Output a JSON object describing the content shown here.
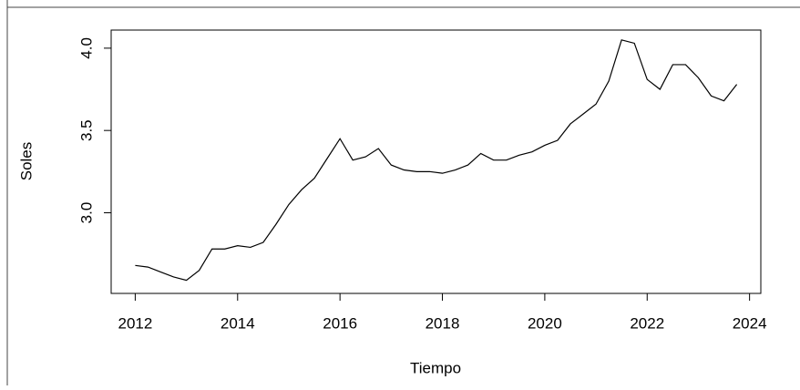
{
  "chart_data": {
    "type": "line",
    "x_label": "Tiempo",
    "y_label": "Soles",
    "x": [
      2012,
      2012.25,
      2012.5,
      2012.75,
      2013,
      2013.25,
      2013.5,
      2013.75,
      2014,
      2014.25,
      2014.5,
      2014.75,
      2015,
      2015.25,
      2015.5,
      2015.75,
      2016,
      2016.25,
      2016.5,
      2016.75,
      2017,
      2017.25,
      2017.5,
      2017.75,
      2018,
      2018.25,
      2018.5,
      2018.75,
      2019,
      2019.25,
      2019.5,
      2019.75,
      2020,
      2020.25,
      2020.5,
      2020.75,
      2021,
      2021.25,
      2021.5,
      2021.75,
      2022,
      2022.25,
      2022.5,
      2022.75,
      2023,
      2023.25,
      2023.5,
      2023.75
    ],
    "values": [
      2.68,
      2.67,
      2.64,
      2.61,
      2.59,
      2.65,
      2.78,
      2.78,
      2.8,
      2.79,
      2.82,
      2.93,
      3.05,
      3.14,
      3.21,
      3.33,
      3.45,
      3.32,
      3.34,
      3.39,
      3.29,
      3.26,
      3.25,
      3.25,
      3.24,
      3.26,
      3.29,
      3.36,
      3.32,
      3.32,
      3.35,
      3.37,
      3.41,
      3.44,
      3.54,
      3.6,
      3.66,
      3.8,
      4.05,
      4.03,
      3.81,
      3.75,
      3.9,
      3.9,
      3.82,
      3.71,
      3.68,
      3.78
    ],
    "color": "#000000",
    "xlim": [
      2011.53,
      2024.22
    ],
    "xticks": [
      2012,
      2014,
      2016,
      2018,
      2020,
      2022,
      2024
    ],
    "ylim": [
      2.51,
      4.11
    ],
    "yticks": [
      {
        "value": 3,
        "label": "3.0"
      },
      3.5,
      {
        "value": 4,
        "label": "4.0"
      }
    ]
  }
}
